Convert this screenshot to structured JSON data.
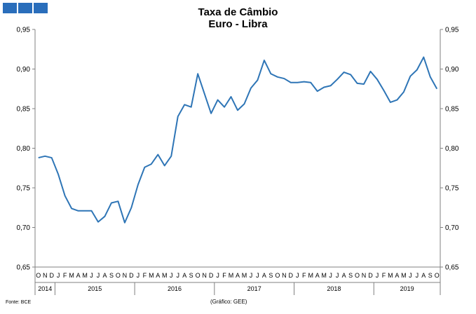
{
  "header": {
    "logo_icon": "gee-logo-blocks",
    "title_line1": "Taxa de Câmbio",
    "title_line2": "Euro - Libra"
  },
  "footer": {
    "source": "Fonte: BCE",
    "credit": "(Gráfico: GEE)"
  },
  "colors": {
    "line": "#2e75b6",
    "logo": "#2a6ebb",
    "axis": "#808080"
  },
  "chart_data": {
    "type": "line",
    "title": "Taxa de Câmbio Euro - Libra",
    "ylim": [
      0.65,
      0.95
    ],
    "yticks": [
      "0,95",
      "0,90",
      "0,85",
      "0,80",
      "0,75",
      "0,70",
      "0,65"
    ],
    "ytick_values": [
      0.95,
      0.9,
      0.85,
      0.8,
      0.75,
      0.7,
      0.65
    ],
    "y_axis_sides": "left and right",
    "grid": false,
    "months": [
      "O",
      "N",
      "D",
      "J",
      "F",
      "M",
      "A",
      "M",
      "J",
      "J",
      "A",
      "S",
      "O",
      "N",
      "D",
      "J",
      "F",
      "M",
      "A",
      "M",
      "J",
      "J",
      "A",
      "S",
      "O",
      "N",
      "D",
      "J",
      "F",
      "M",
      "A",
      "M",
      "J",
      "J",
      "A",
      "S",
      "O",
      "N",
      "D",
      "J",
      "F",
      "M",
      "A",
      "M",
      "J",
      "J",
      "A",
      "S",
      "O",
      "N",
      "D",
      "J",
      "F",
      "M",
      "A",
      "M",
      "J",
      "J",
      "A",
      "S",
      "O"
    ],
    "years": [
      {
        "label": "2014",
        "start": 0,
        "count": 3
      },
      {
        "label": "2015",
        "start": 3,
        "count": 12
      },
      {
        "label": "2016",
        "start": 15,
        "count": 12
      },
      {
        "label": "2017",
        "start": 27,
        "count": 12
      },
      {
        "label": "2018",
        "start": 39,
        "count": 12
      },
      {
        "label": "2019",
        "start": 51,
        "count": 10
      }
    ],
    "series": [
      {
        "values": [
          0.788,
          0.79,
          0.788,
          0.767,
          0.74,
          0.724,
          0.721,
          0.721,
          0.721,
          0.707,
          0.714,
          0.731,
          0.733,
          0.706,
          0.725,
          0.754,
          0.776,
          0.78,
          0.792,
          0.778,
          0.79,
          0.84,
          0.855,
          0.852,
          0.894,
          0.869,
          0.844,
          0.861,
          0.852,
          0.865,
          0.848,
          0.856,
          0.876,
          0.886,
          0.911,
          0.894,
          0.89,
          0.888,
          0.883,
          0.883,
          0.884,
          0.883,
          0.872,
          0.877,
          0.879,
          0.887,
          0.896,
          0.893,
          0.882,
          0.881,
          0.897,
          0.887,
          0.873,
          0.858,
          0.861,
          0.871,
          0.891,
          0.899,
          0.915,
          0.89,
          0.875
        ]
      }
    ]
  }
}
